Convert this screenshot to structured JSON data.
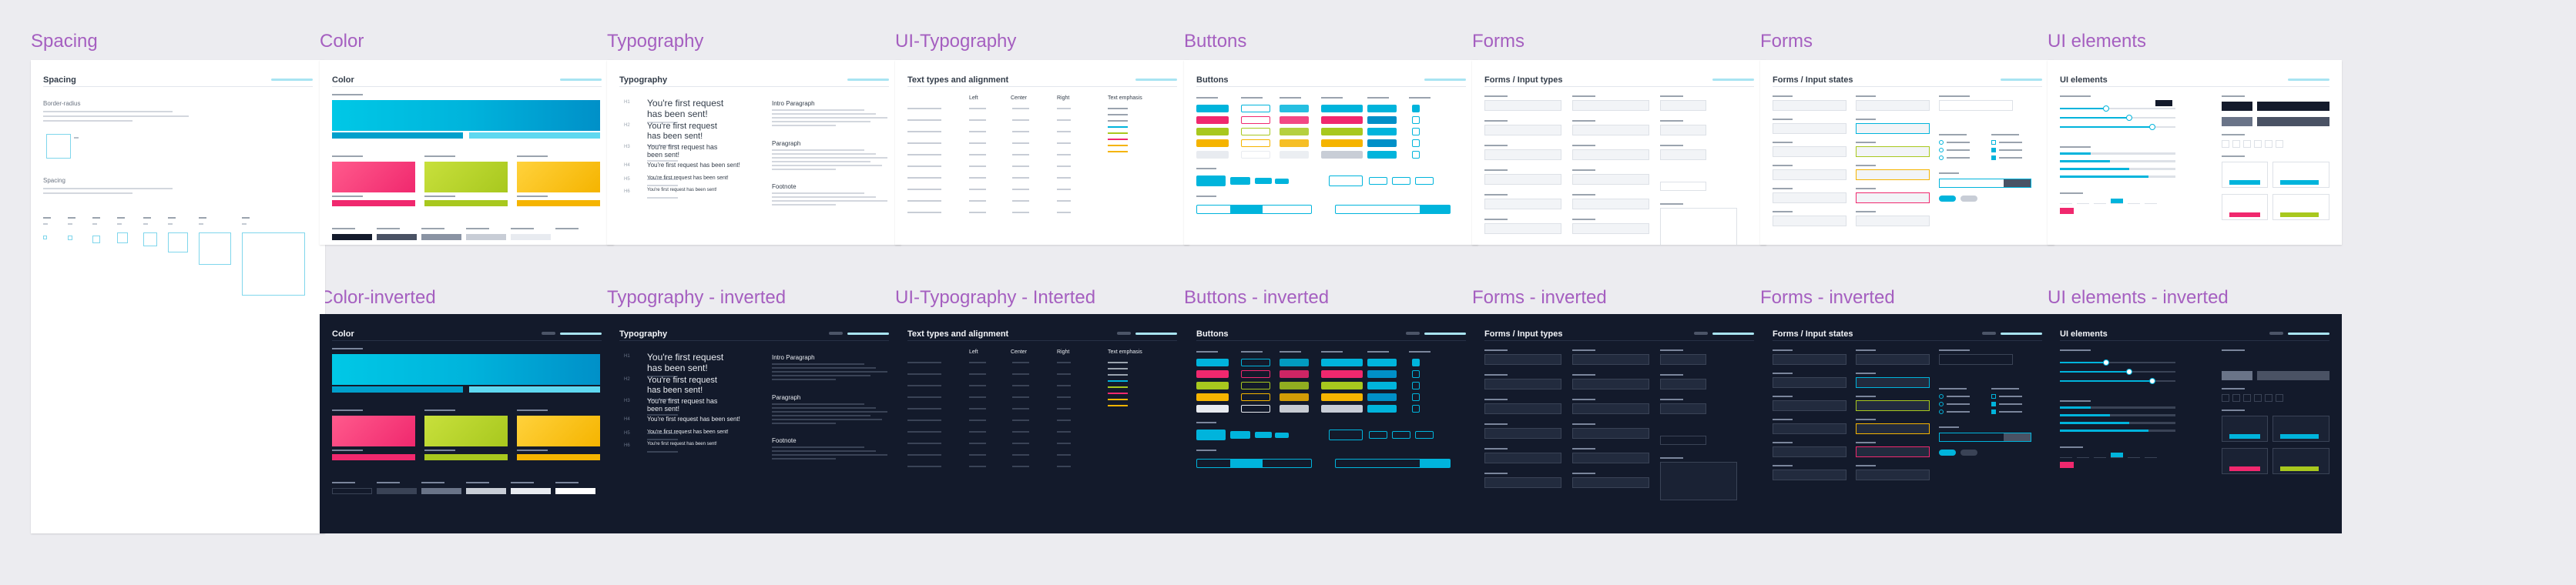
{
  "columns": [
    {
      "top": "Spacing",
      "bottom": null
    },
    {
      "top": "Color",
      "bottom": "Color-inverted"
    },
    {
      "top": "Typography",
      "bottom": "Typography - inverted"
    },
    {
      "top": "UI-Typography",
      "bottom": "UI-Typography - Interted"
    },
    {
      "top": "Buttons",
      "bottom": "Buttons - inverted"
    },
    {
      "top": "Forms",
      "bottom": "Forms - inverted"
    },
    {
      "top": "Forms",
      "bottom": "Forms - inverted"
    },
    {
      "top": "UI elements",
      "bottom": "UI elements - inverted"
    }
  ],
  "frames": {
    "spacing": {
      "title": "Spacing",
      "border_radius": "Border-radius",
      "spacing_label": "Spacing"
    },
    "color": {
      "title": "Color"
    },
    "typography": {
      "title": "Typography",
      "heading_sample": "You're first request has been sent!",
      "sizes": [
        "H1",
        "H2",
        "H3",
        "H4",
        "H5",
        "H6"
      ],
      "intro": "Intro Paragraph",
      "paragraph": "Paragraph",
      "footnote": "Footnote"
    },
    "ui_typography": {
      "title": "Text types and alignment",
      "col_left": "Left",
      "col_center": "Center",
      "col_right": "Right",
      "col_emphasis": "Text emphasis"
    },
    "buttons": {
      "title": "Buttons"
    },
    "forms_types": {
      "title": "Forms / Input types"
    },
    "forms_states": {
      "title": "Forms / Input states"
    },
    "ui_elements": {
      "title": "UI elements"
    }
  },
  "colors": {
    "accent_title": "#a55fc0",
    "dark_bg": "#131a2b",
    "primary": "#00b4dc",
    "pink": "#f0286e",
    "lime": "#a8c81e",
    "yellow": "#f5b400"
  }
}
